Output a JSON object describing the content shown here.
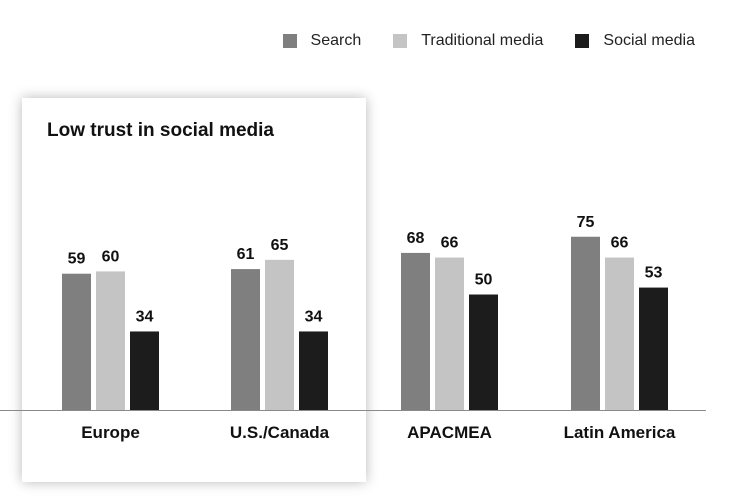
{
  "chart_data": {
    "type": "bar",
    "title": "",
    "xlabel": "",
    "ylabel": "",
    "categories": [
      "Europe",
      "U.S./Canada",
      "APACMEA",
      "Latin America"
    ],
    "series": [
      {
        "name": "Search",
        "color": "#7f7f7f",
        "values": [
          59,
          61,
          68,
          75
        ]
      },
      {
        "name": "Traditional media",
        "color": "#c4c4c4",
        "values": [
          60,
          65,
          66,
          66
        ]
      },
      {
        "name": "Social media",
        "color": "#1c1c1c",
        "values": [
          34,
          34,
          50,
          53
        ]
      }
    ],
    "ylim": [
      0,
      100
    ],
    "grid": false,
    "legend_position": "top-right",
    "highlight": {
      "label": "Low trust in social media",
      "categories": [
        "Europe",
        "U.S./Canada"
      ]
    }
  }
}
